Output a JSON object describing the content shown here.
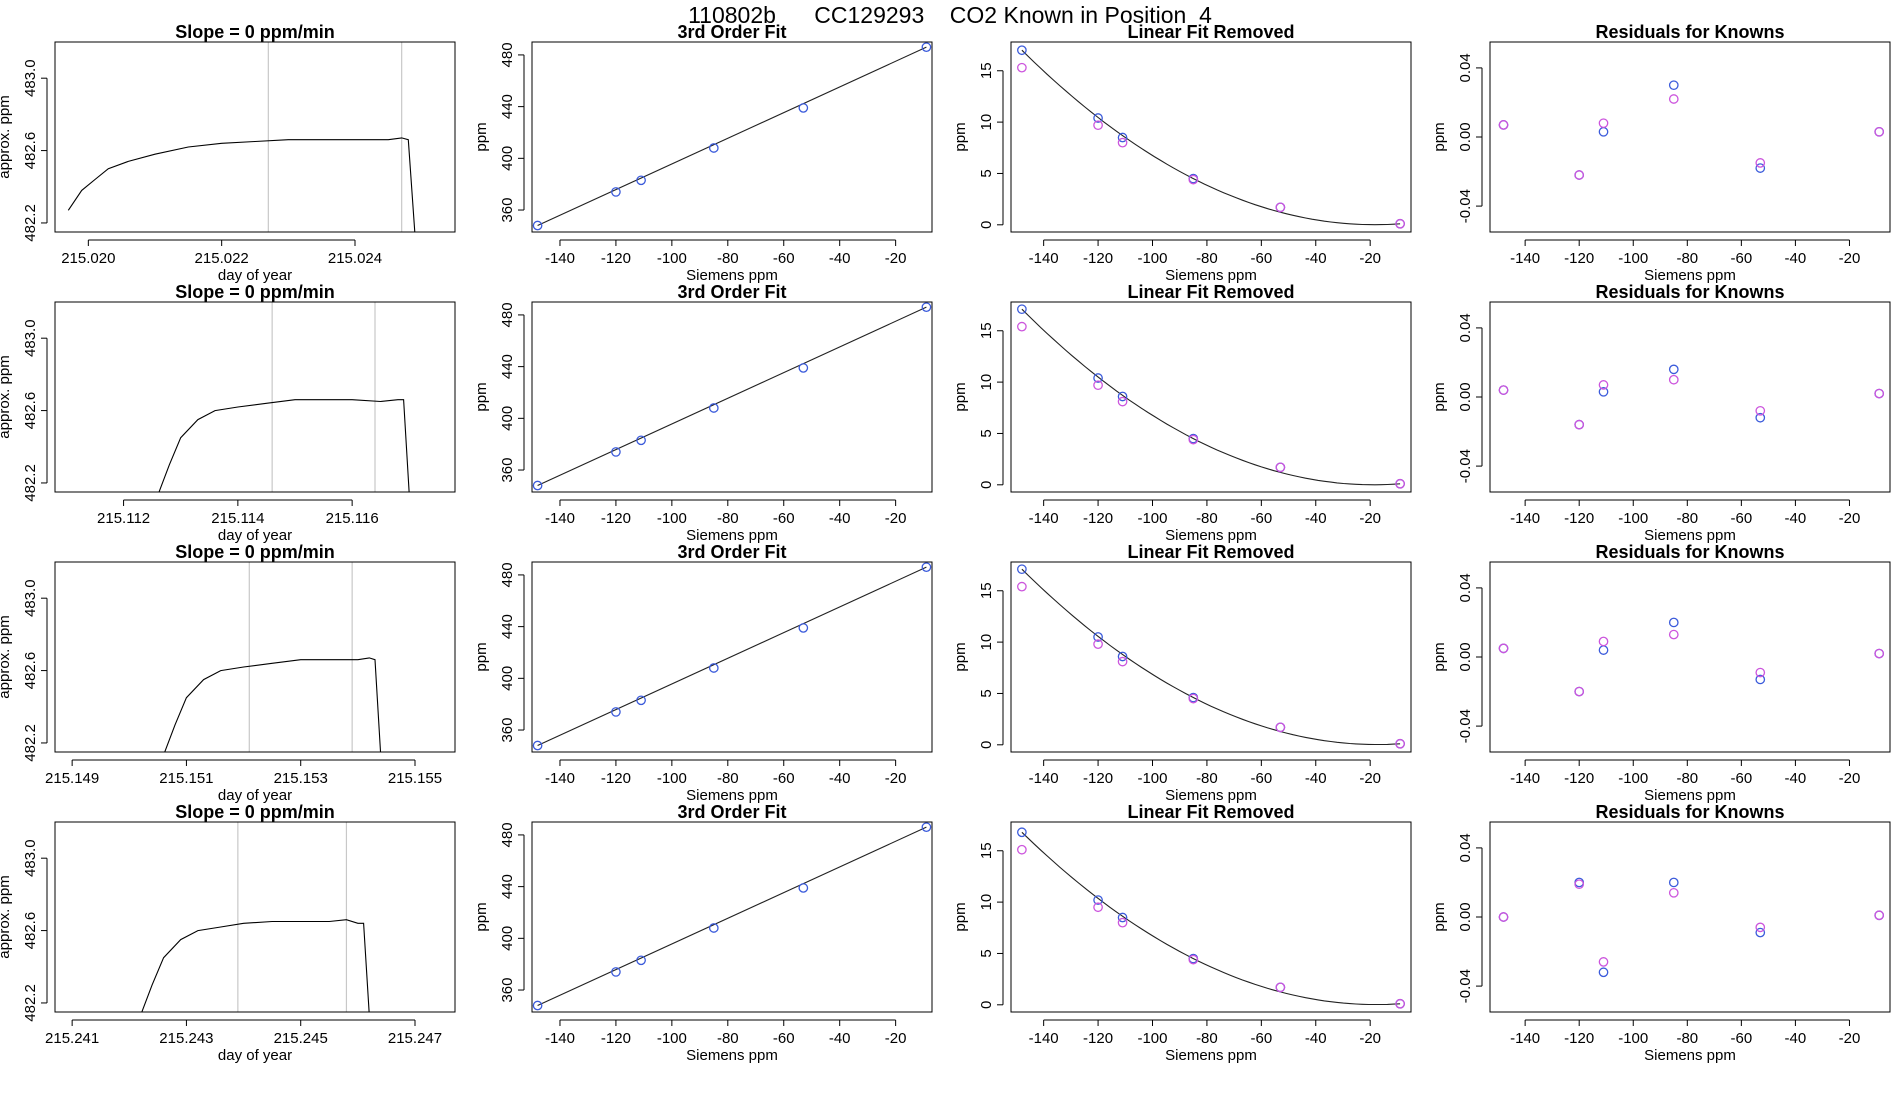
{
  "figure_title": "110802b      CC129293    CO2 Known in Position  4",
  "chart_data": [
    {
      "type": "line",
      "title": "Slope =  0  ppm/min",
      "xlabel": "day of year",
      "ylabel": "approx. ppm",
      "xlim": [
        215.0195,
        215.0255
      ],
      "ylim": [
        482.15,
        483.2
      ],
      "x_ticks": [
        215.02,
        215.022,
        215.024
      ],
      "x_tick_labels": [
        "215.020",
        "215.022",
        "215.024"
      ],
      "y_ticks": [
        482.2,
        482.6,
        483.0
      ],
      "y_tick_labels": [
        "482.2",
        "482.6",
        "483.0"
      ],
      "vlines": [
        215.0227,
        215.0247
      ],
      "x": [
        215.0197,
        215.0199,
        215.0201,
        215.0203,
        215.0206,
        215.021,
        215.0215,
        215.022,
        215.0225,
        215.023,
        215.0235,
        215.024,
        215.0245,
        215.0247,
        215.0248,
        215.0249
      ],
      "y": [
        482.27,
        482.38,
        482.44,
        482.5,
        482.54,
        482.58,
        482.62,
        482.64,
        482.65,
        482.66,
        482.66,
        482.66,
        482.66,
        482.67,
        482.66,
        482.1
      ],
      "series_color": "#000000",
      "grid": false
    },
    {
      "type": "scatter",
      "title": "3rd Order Fit",
      "xlabel": "Siemens ppm",
      "ylabel": "ppm",
      "xlim": [
        -150,
        -7
      ],
      "ylim": [
        343,
        490
      ],
      "x_ticks": [
        -140,
        -120,
        -100,
        -80,
        -60,
        -40,
        -20
      ],
      "x_tick_labels": [
        "-140",
        "-120",
        "-100",
        "-80",
        "-60",
        "-40",
        "-20"
      ],
      "y_ticks": [
        360,
        400,
        440,
        480
      ],
      "y_tick_labels": [
        "360",
        "400",
        "440",
        "480"
      ],
      "series": [
        {
          "x": [
            -148,
            -120,
            -111,
            -85,
            -53,
            -9
          ],
          "y": [
            348,
            374,
            383,
            408,
            439,
            486
          ],
          "color": "#3b5bdb"
        }
      ],
      "fit_line": true,
      "grid": false
    },
    {
      "type": "scatter",
      "title": "Linear Fit Removed",
      "xlabel": "Siemens ppm",
      "ylabel": "ppm",
      "xlim": [
        -152,
        -5
      ],
      "ylim": [
        -0.7,
        17.8
      ],
      "x_ticks": [
        -140,
        -120,
        -100,
        -80,
        -60,
        -40,
        -20
      ],
      "x_tick_labels": [
        "-140",
        "-120",
        "-100",
        "-80",
        "-60",
        "-40",
        "-20"
      ],
      "y_ticks": [
        0,
        5,
        10,
        15
      ],
      "y_tick_labels": [
        "0",
        "5",
        "10",
        "15"
      ],
      "series": [
        {
          "x": [
            -148,
            -120,
            -111,
            -85,
            -53,
            -9
          ],
          "y": [
            17.0,
            10.4,
            8.5,
            4.5,
            1.7,
            0.1
          ],
          "color": "#3b5bdb"
        },
        {
          "x": [
            -148,
            -120,
            -111,
            -85,
            -53,
            -9
          ],
          "y": [
            15.3,
            9.7,
            8.0,
            4.4,
            1.7,
            0.1
          ],
          "color": "#cc55dd"
        }
      ],
      "fit_curve": true,
      "grid": false
    },
    {
      "type": "scatter",
      "title": "Residuals for Knowns",
      "xlabel": "Siemens ppm",
      "ylabel": "ppm",
      "xlim": [
        -153,
        -5
      ],
      "ylim": [
        -0.055,
        0.055
      ],
      "x_ticks": [
        -140,
        -120,
        -100,
        -80,
        -60,
        -40,
        -20
      ],
      "x_tick_labels": [
        "-140",
        "-120",
        "-100",
        "-80",
        "-60",
        "-40",
        "-20"
      ],
      "y_ticks": [
        -0.04,
        0.0,
        0.04
      ],
      "y_tick_labels": [
        "-0.04",
        "0.00",
        "0.04"
      ],
      "series": [
        {
          "x": [
            -148,
            -120,
            -111,
            -85,
            -53,
            -9
          ],
          "y": [
            0.007,
            -0.022,
            0.003,
            0.03,
            -0.018,
            0.003
          ],
          "color": "#3b5bdb"
        },
        {
          "x": [
            -148,
            -120,
            -111,
            -85,
            -53,
            -9
          ],
          "y": [
            0.007,
            -0.022,
            0.008,
            0.022,
            -0.015,
            0.003
          ],
          "color": "#cc55dd"
        }
      ],
      "grid": false
    },
    {
      "type": "line",
      "title": "Slope =  0  ppm/min",
      "xlabel": "day of year",
      "ylabel": "approx. ppm",
      "xlim": [
        215.1108,
        215.1178
      ],
      "ylim": [
        482.15,
        483.2
      ],
      "x_ticks": [
        215.112,
        215.114,
        215.116
      ],
      "x_tick_labels": [
        "215.112",
        "215.114",
        "215.116"
      ],
      "y_ticks": [
        482.2,
        482.6,
        483.0
      ],
      "y_tick_labels": [
        "482.2",
        "482.6",
        "483.0"
      ],
      "vlines": [
        215.1146,
        215.1164
      ],
      "x": [
        215.1126,
        215.1128,
        215.113,
        215.1133,
        215.1136,
        215.114,
        215.1145,
        215.115,
        215.1155,
        215.116,
        215.1165,
        215.1168,
        215.1169,
        215.117
      ],
      "y": [
        482.1,
        482.3,
        482.45,
        482.55,
        482.6,
        482.62,
        482.64,
        482.66,
        482.66,
        482.66,
        482.65,
        482.66,
        482.66,
        482.1
      ],
      "series_color": "#000000",
      "grid": false
    },
    {
      "type": "scatter",
      "title": "3rd Order Fit",
      "xlabel": "Siemens ppm",
      "ylabel": "ppm",
      "xlim": [
        -150,
        -7
      ],
      "ylim": [
        343,
        490
      ],
      "x_ticks": [
        -140,
        -120,
        -100,
        -80,
        -60,
        -40,
        -20
      ],
      "x_tick_labels": [
        "-140",
        "-120",
        "-100",
        "-80",
        "-60",
        "-40",
        "-20"
      ],
      "y_ticks": [
        360,
        400,
        440,
        480
      ],
      "y_tick_labels": [
        "360",
        "400",
        "440",
        "480"
      ],
      "series": [
        {
          "x": [
            -148,
            -120,
            -111,
            -85,
            -53,
            -9
          ],
          "y": [
            348,
            374,
            383,
            408,
            439,
            486
          ],
          "color": "#3b5bdb"
        }
      ],
      "fit_line": true,
      "grid": false
    },
    {
      "type": "scatter",
      "title": "Linear Fit Removed",
      "xlabel": "Siemens ppm",
      "ylabel": "ppm",
      "xlim": [
        -152,
        -5
      ],
      "ylim": [
        -0.7,
        17.8
      ],
      "x_ticks": [
        -140,
        -120,
        -100,
        -80,
        -60,
        -40,
        -20
      ],
      "x_tick_labels": [
        "-140",
        "-120",
        "-100",
        "-80",
        "-60",
        "-40",
        "-20"
      ],
      "y_ticks": [
        0,
        5,
        10,
        15
      ],
      "y_tick_labels": [
        "0",
        "5",
        "10",
        "15"
      ],
      "series": [
        {
          "x": [
            -148,
            -120,
            -111,
            -85,
            -53,
            -9
          ],
          "y": [
            17.1,
            10.4,
            8.6,
            4.5,
            1.7,
            0.1
          ],
          "color": "#3b5bdb"
        },
        {
          "x": [
            -148,
            -120,
            -111,
            -85,
            -53,
            -9
          ],
          "y": [
            15.4,
            9.7,
            8.1,
            4.4,
            1.7,
            0.1
          ],
          "color": "#cc55dd"
        }
      ],
      "fit_curve": true,
      "grid": false
    },
    {
      "type": "scatter",
      "title": "Residuals for Knowns",
      "xlabel": "Siemens ppm",
      "ylabel": "ppm",
      "xlim": [
        -153,
        -5
      ],
      "ylim": [
        -0.055,
        0.055
      ],
      "x_ticks": [
        -140,
        -120,
        -100,
        -80,
        -60,
        -40,
        -20
      ],
      "x_tick_labels": [
        "-140",
        "-120",
        "-100",
        "-80",
        "-60",
        "-40",
        "-20"
      ],
      "y_ticks": [
        -0.04,
        0.0,
        0.04
      ],
      "y_tick_labels": [
        "-0.04",
        "0.00",
        "0.04"
      ],
      "series": [
        {
          "x": [
            -148,
            -120,
            -111,
            -85,
            -53,
            -9
          ],
          "y": [
            0.004,
            -0.016,
            0.003,
            0.016,
            -0.012,
            0.002
          ],
          "color": "#3b5bdb"
        },
        {
          "x": [
            -148,
            -120,
            -111,
            -85,
            -53,
            -9
          ],
          "y": [
            0.004,
            -0.016,
            0.007,
            0.01,
            -0.008,
            0.002
          ],
          "color": "#cc55dd"
        }
      ],
      "grid": false
    },
    {
      "type": "line",
      "title": "Slope =  0  ppm/min",
      "xlabel": "day of year",
      "ylabel": "approx. ppm",
      "xlim": [
        215.1487,
        215.1557
      ],
      "ylim": [
        482.15,
        483.2
      ],
      "x_ticks": [
        215.149,
        215.151,
        215.153,
        215.155
      ],
      "x_tick_labels": [
        "215.149",
        "215.151",
        "215.153",
        "215.155"
      ],
      "y_ticks": [
        482.2,
        482.6,
        483.0
      ],
      "y_tick_labels": [
        "482.2",
        "482.6",
        "483.0"
      ],
      "vlines": [
        215.1521,
        215.1539
      ],
      "x": [
        215.1506,
        215.1508,
        215.151,
        215.1513,
        215.1516,
        215.152,
        215.1525,
        215.153,
        215.1535,
        215.154,
        215.1542,
        215.1543,
        215.1544
      ],
      "y": [
        482.1,
        482.3,
        482.45,
        482.55,
        482.6,
        482.62,
        482.64,
        482.66,
        482.66,
        482.66,
        482.67,
        482.66,
        482.1
      ],
      "series_color": "#000000",
      "grid": false
    },
    {
      "type": "scatter",
      "title": "3rd Order Fit",
      "xlabel": "Siemens ppm",
      "ylabel": "ppm",
      "xlim": [
        -150,
        -7
      ],
      "ylim": [
        343,
        490
      ],
      "x_ticks": [
        -140,
        -120,
        -100,
        -80,
        -60,
        -40,
        -20
      ],
      "x_tick_labels": [
        "-140",
        "-120",
        "-100",
        "-80",
        "-60",
        "-40",
        "-20"
      ],
      "y_ticks": [
        360,
        400,
        440,
        480
      ],
      "y_tick_labels": [
        "360",
        "400",
        "440",
        "480"
      ],
      "series": [
        {
          "x": [
            -148,
            -120,
            -111,
            -85,
            -53,
            -9
          ],
          "y": [
            348,
            374,
            383,
            408,
            439,
            486
          ],
          "color": "#3b5bdb"
        }
      ],
      "fit_line": true,
      "grid": false
    },
    {
      "type": "scatter",
      "title": "Linear Fit Removed",
      "xlabel": "Siemens ppm",
      "ylabel": "ppm",
      "xlim": [
        -152,
        -5
      ],
      "ylim": [
        -0.7,
        17.8
      ],
      "x_ticks": [
        -140,
        -120,
        -100,
        -80,
        -60,
        -40,
        -20
      ],
      "x_tick_labels": [
        "-140",
        "-120",
        "-100",
        "-80",
        "-60",
        "-40",
        "-20"
      ],
      "y_ticks": [
        0,
        5,
        10,
        15
      ],
      "y_tick_labels": [
        "0",
        "5",
        "10",
        "15"
      ],
      "series": [
        {
          "x": [
            -148,
            -120,
            -111,
            -85,
            -53,
            -9
          ],
          "y": [
            17.1,
            10.5,
            8.6,
            4.6,
            1.7,
            0.1
          ],
          "color": "#3b5bdb"
        },
        {
          "x": [
            -148,
            -120,
            -111,
            -85,
            -53,
            -9
          ],
          "y": [
            15.4,
            9.8,
            8.1,
            4.5,
            1.7,
            0.1
          ],
          "color": "#cc55dd"
        }
      ],
      "fit_curve": true,
      "grid": false
    },
    {
      "type": "scatter",
      "title": "Residuals for Knowns",
      "xlabel": "Siemens ppm",
      "ylabel": "ppm",
      "xlim": [
        -153,
        -5
      ],
      "ylim": [
        -0.055,
        0.055
      ],
      "x_ticks": [
        -140,
        -120,
        -100,
        -80,
        -60,
        -40,
        -20
      ],
      "x_tick_labels": [
        "-140",
        "-120",
        "-100",
        "-80",
        "-60",
        "-40",
        "-20"
      ],
      "y_ticks": [
        -0.04,
        0.0,
        0.04
      ],
      "y_tick_labels": [
        "-0.04",
        "0.00",
        "0.04"
      ],
      "series": [
        {
          "x": [
            -148,
            -120,
            -111,
            -85,
            -53,
            -9
          ],
          "y": [
            0.005,
            -0.02,
            0.004,
            0.02,
            -0.013,
            0.002
          ],
          "color": "#3b5bdb"
        },
        {
          "x": [
            -148,
            -120,
            -111,
            -85,
            -53,
            -9
          ],
          "y": [
            0.005,
            -0.02,
            0.009,
            0.013,
            -0.009,
            0.002
          ],
          "color": "#cc55dd"
        }
      ],
      "grid": false
    },
    {
      "type": "line",
      "title": "Slope =  0  ppm/min",
      "xlabel": "day of year",
      "ylabel": "approx. ppm",
      "xlim": [
        215.2407,
        215.2477
      ],
      "ylim": [
        482.15,
        483.2
      ],
      "x_ticks": [
        215.241,
        215.243,
        215.245,
        215.247
      ],
      "x_tick_labels": [
        "215.241",
        "215.243",
        "215.245",
        "215.247"
      ],
      "y_ticks": [
        482.2,
        482.6,
        483.0
      ],
      "y_tick_labels": [
        "482.2",
        "482.6",
        "483.0"
      ],
      "vlines": [
        215.2439,
        215.2458
      ],
      "x": [
        215.2422,
        215.2424,
        215.2426,
        215.2429,
        215.2432,
        215.2436,
        215.244,
        215.2445,
        215.245,
        215.2455,
        215.2458,
        215.246,
        215.2461,
        215.2462
      ],
      "y": [
        482.1,
        482.3,
        482.45,
        482.55,
        482.6,
        482.62,
        482.64,
        482.65,
        482.65,
        482.65,
        482.66,
        482.64,
        482.64,
        482.1
      ],
      "series_color": "#000000",
      "grid": false
    },
    {
      "type": "scatter",
      "title": "3rd Order Fit",
      "xlabel": "Siemens ppm",
      "ylabel": "ppm",
      "xlim": [
        -150,
        -7
      ],
      "ylim": [
        343,
        490
      ],
      "x_ticks": [
        -140,
        -120,
        -100,
        -80,
        -60,
        -40,
        -20
      ],
      "x_tick_labels": [
        "-140",
        "-120",
        "-100",
        "-80",
        "-60",
        "-40",
        "-20"
      ],
      "y_ticks": [
        360,
        400,
        440,
        480
      ],
      "y_tick_labels": [
        "360",
        "400",
        "440",
        "480"
      ],
      "series": [
        {
          "x": [
            -148,
            -120,
            -111,
            -85,
            -53,
            -9
          ],
          "y": [
            348,
            374,
            383,
            408,
            439,
            486
          ],
          "color": "#3b5bdb"
        }
      ],
      "fit_line": true,
      "grid": false
    },
    {
      "type": "scatter",
      "title": "Linear Fit Removed",
      "xlabel": "Siemens ppm",
      "ylabel": "ppm",
      "xlim": [
        -152,
        -5
      ],
      "ylim": [
        -0.7,
        17.8
      ],
      "x_ticks": [
        -140,
        -120,
        -100,
        -80,
        -60,
        -40,
        -20
      ],
      "x_tick_labels": [
        "-140",
        "-120",
        "-100",
        "-80",
        "-60",
        "-40",
        "-20"
      ],
      "y_ticks": [
        0,
        5,
        10,
        15
      ],
      "y_tick_labels": [
        "0",
        "5",
        "10",
        "15"
      ],
      "series": [
        {
          "x": [
            -148,
            -120,
            -111,
            -85,
            -53,
            -9
          ],
          "y": [
            16.8,
            10.2,
            8.5,
            4.5,
            1.7,
            0.1
          ],
          "color": "#3b5bdb"
        },
        {
          "x": [
            -148,
            -120,
            -111,
            -85,
            -53,
            -9
          ],
          "y": [
            15.1,
            9.5,
            8.0,
            4.4,
            1.7,
            0.1
          ],
          "color": "#cc55dd"
        }
      ],
      "fit_curve": true,
      "grid": false
    },
    {
      "type": "scatter",
      "title": "Residuals for Knowns",
      "xlabel": "Siemens ppm",
      "ylabel": "ppm",
      "xlim": [
        -153,
        -5
      ],
      "ylim": [
        -0.055,
        0.055
      ],
      "x_ticks": [
        -140,
        -120,
        -100,
        -80,
        -60,
        -40,
        -20
      ],
      "x_tick_labels": [
        "-140",
        "-120",
        "-100",
        "-80",
        "-60",
        "-40",
        "-20"
      ],
      "y_ticks": [
        -0.04,
        0.0,
        0.04
      ],
      "y_tick_labels": [
        "-0.04",
        "0.00",
        "0.04"
      ],
      "series": [
        {
          "x": [
            -148,
            -120,
            -111,
            -85,
            -53,
            -9
          ],
          "y": [
            0.0,
            0.02,
            -0.032,
            0.02,
            -0.009,
            0.001
          ],
          "color": "#3b5bdb"
        },
        {
          "x": [
            -148,
            -120,
            -111,
            -85,
            -53,
            -9
          ],
          "y": [
            0.0,
            0.019,
            -0.026,
            0.014,
            -0.006,
            0.001
          ],
          "color": "#cc55dd"
        }
      ],
      "grid": false
    }
  ]
}
